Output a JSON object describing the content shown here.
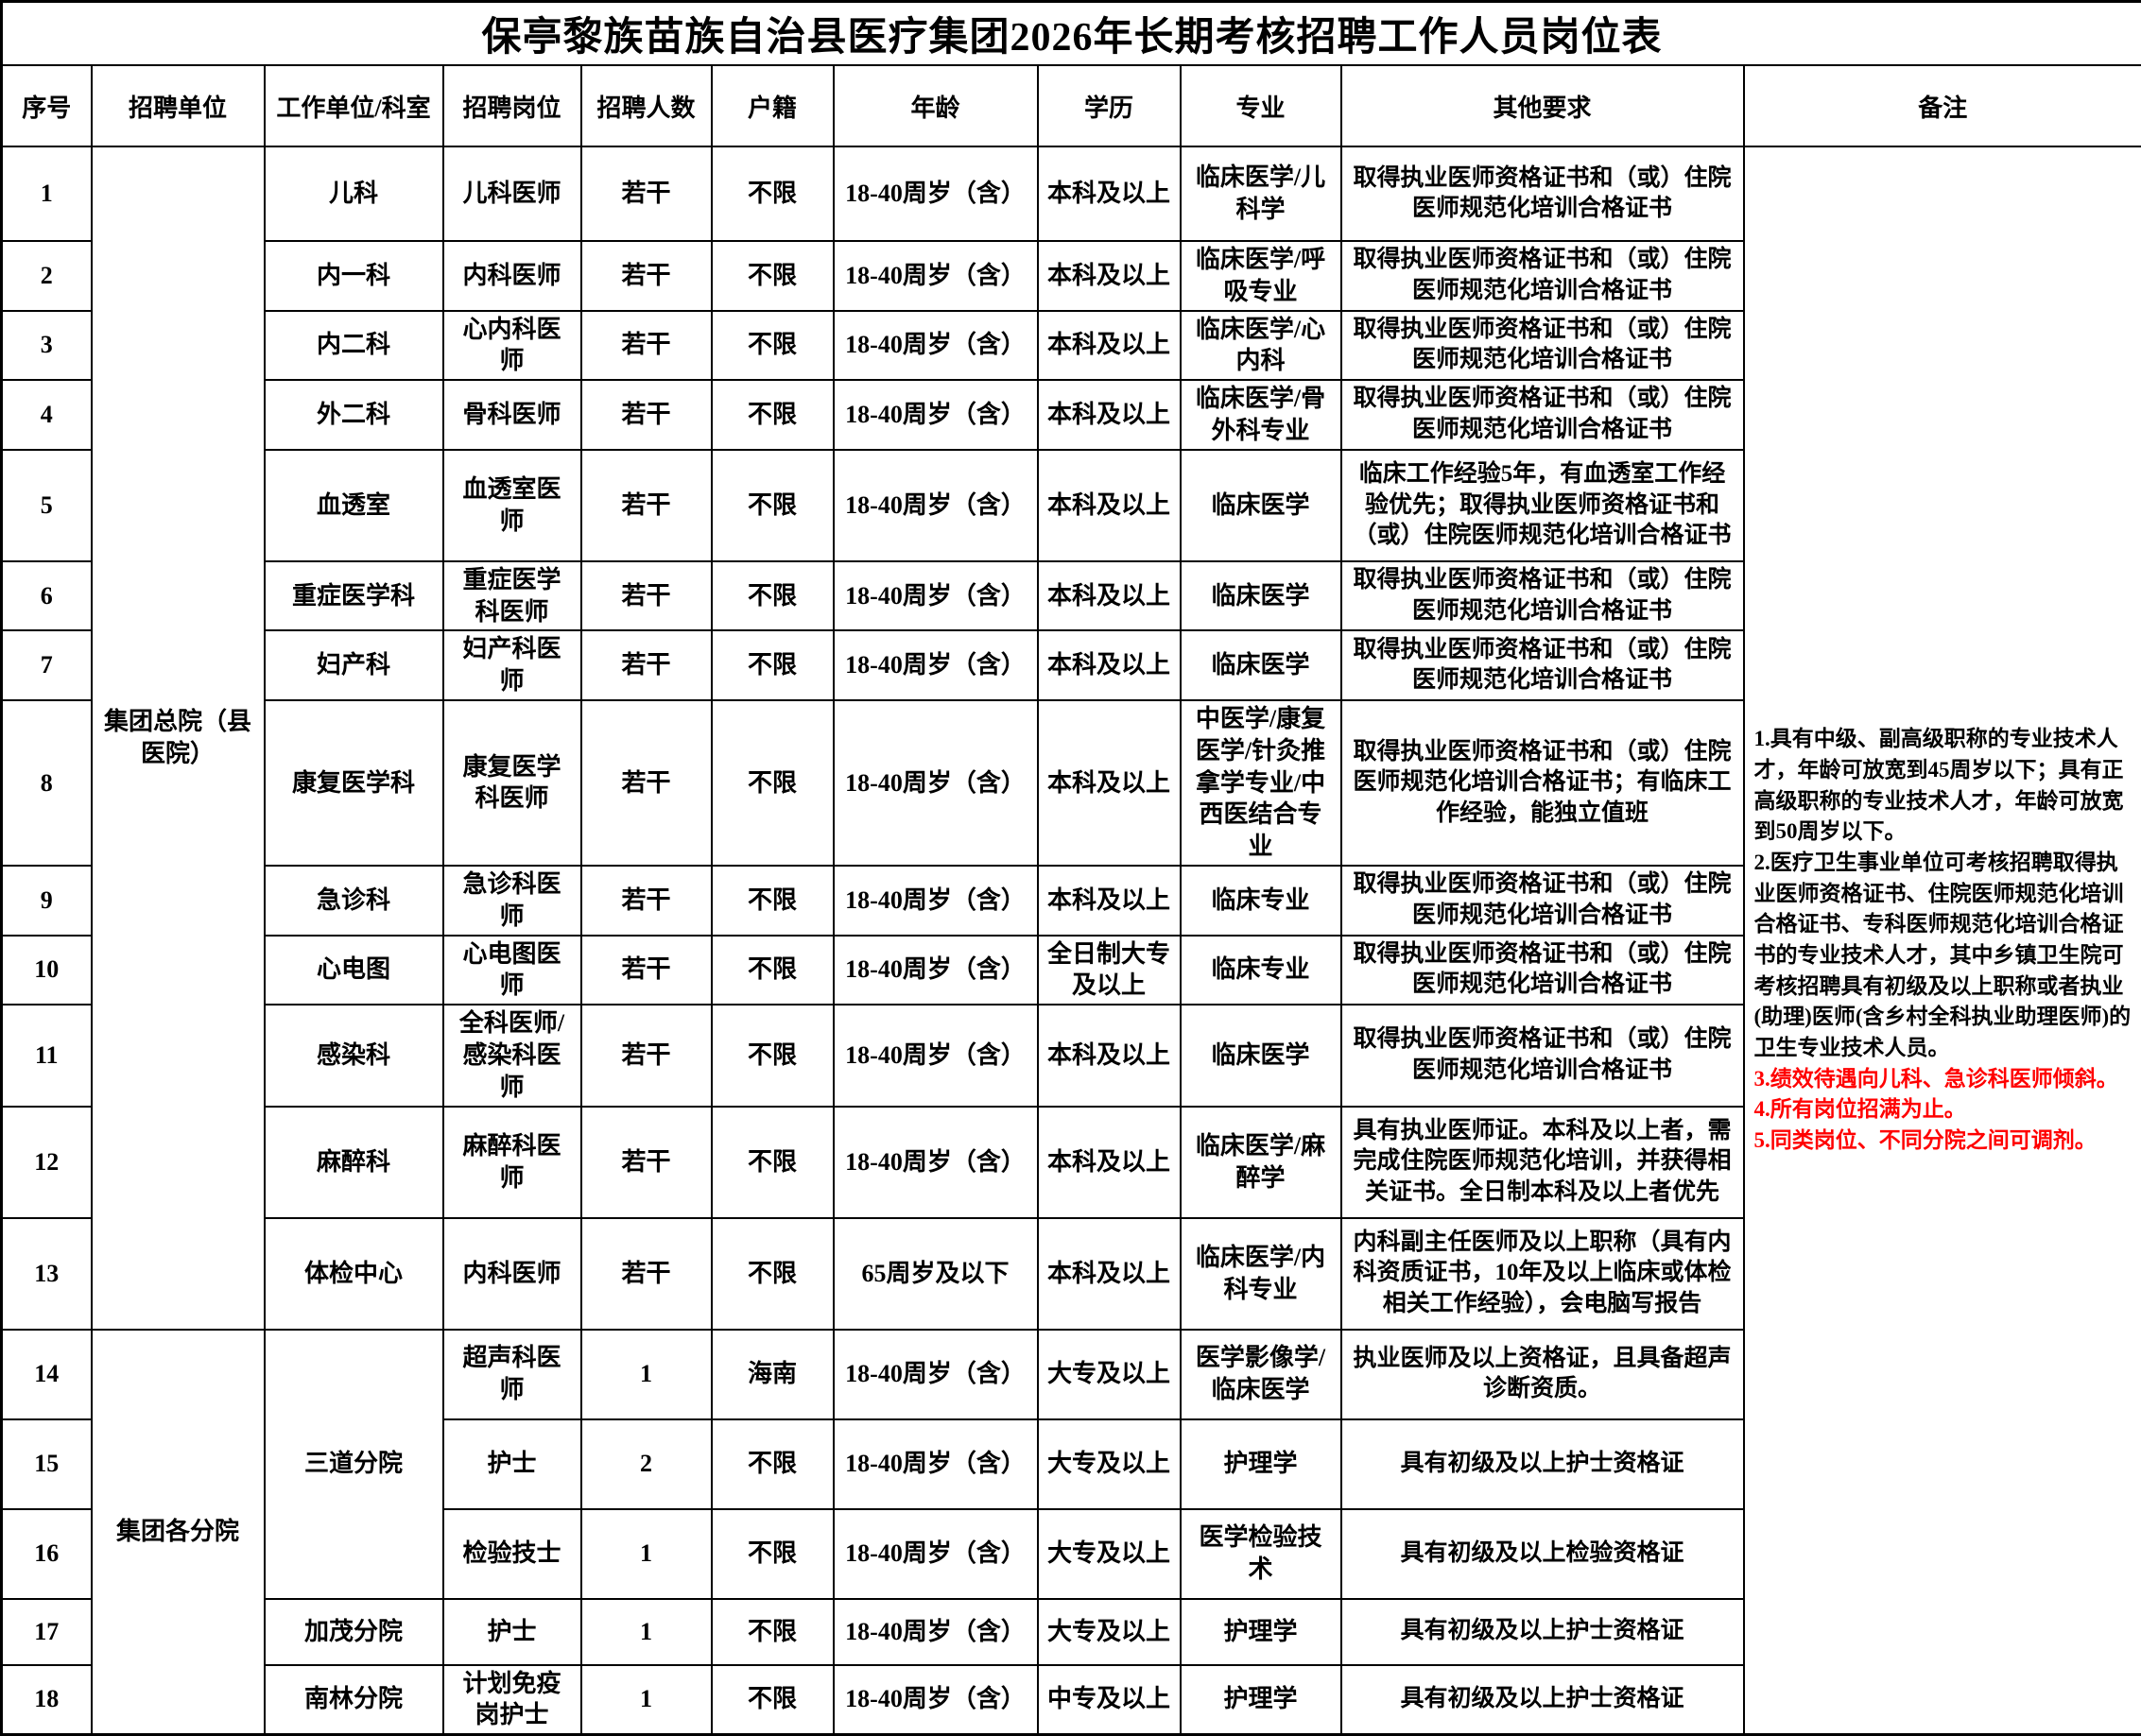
{
  "title": "保亭黎族苗族自治县医疗集团2026年长期考核招聘工作人员岗位表",
  "columns": [
    "序号",
    "招聘单位",
    "工作单位/科室",
    "招聘岗位",
    "招聘人数",
    "户籍",
    "年龄",
    "学历",
    "专业",
    "其他要求",
    "备注"
  ],
  "colors": {
    "text": "#000000",
    "border": "#000000",
    "background": "#ffffff",
    "remark_red": "#ff0000"
  },
  "rows": [
    {
      "cells": [
        {
          "name": "index",
          "text": "1"
        },
        {
          "name": "recruit-unit",
          "text": "集团总院（县医院）",
          "rowspan": 13
        },
        {
          "name": "department",
          "text": "儿科"
        },
        {
          "name": "position",
          "text": "儿科医师"
        },
        {
          "name": "headcount",
          "text": "若干"
        },
        {
          "name": "hukou",
          "text": "不限"
        },
        {
          "name": "age",
          "text": "18-40周岁（含）"
        },
        {
          "name": "education",
          "text": "本科及以上"
        },
        {
          "name": "major",
          "text": "临床医学/儿科学"
        },
        {
          "name": "requirements",
          "text": "取得执业医师资格证书和（或）住院医师规范化培训合格证书"
        },
        {
          "name": "remarks",
          "rowspan": 18,
          "items": [
            {
              "color": "black",
              "text": "1.具有中级、副高级职称的专业技术人才，年龄可放宽到45周岁以下；具有正高级职称的专业技术人才，年龄可放宽到50周岁以下。"
            },
            {
              "color": "black",
              "text": "2.医疗卫生事业单位可考核招聘取得执业医师资格证书、住院医师规范化培训合格证书、专科医师规范化培训合格证书的专业技术人才，其中乡镇卫生院可考核招聘具有初级及以上职称或者执业(助理)医师(含乡村全科执业助理医师)的卫生专业技术人员。"
            },
            {
              "color": "red",
              "text": "3.绩效待遇向儿科、急诊科医师倾斜。"
            },
            {
              "color": "red",
              "text": "4.所有岗位招满为止。"
            },
            {
              "color": "red",
              "text": "5.同类岗位、不同分院之间可调剂。"
            }
          ]
        }
      ]
    },
    {
      "cells": [
        {
          "name": "index",
          "text": "2"
        },
        {
          "name": "department",
          "text": "内一科"
        },
        {
          "name": "position",
          "text": "内科医师"
        },
        {
          "name": "headcount",
          "text": "若干"
        },
        {
          "name": "hukou",
          "text": "不限"
        },
        {
          "name": "age",
          "text": "18-40周岁（含）"
        },
        {
          "name": "education",
          "text": "本科及以上"
        },
        {
          "name": "major",
          "text": "临床医学/呼吸专业"
        },
        {
          "name": "requirements",
          "text": "取得执业医师资格证书和（或）住院医师规范化培训合格证书"
        }
      ]
    },
    {
      "cells": [
        {
          "name": "index",
          "text": "3"
        },
        {
          "name": "department",
          "text": "内二科"
        },
        {
          "name": "position",
          "text": "心内科医师"
        },
        {
          "name": "headcount",
          "text": "若干"
        },
        {
          "name": "hukou",
          "text": "不限"
        },
        {
          "name": "age",
          "text": "18-40周岁（含）"
        },
        {
          "name": "education",
          "text": "本科及以上"
        },
        {
          "name": "major",
          "text": "临床医学/心内科"
        },
        {
          "name": "requirements",
          "text": "取得执业医师资格证书和（或）住院医师规范化培训合格证书"
        }
      ]
    },
    {
      "cells": [
        {
          "name": "index",
          "text": "4"
        },
        {
          "name": "department",
          "text": "外二科"
        },
        {
          "name": "position",
          "text": "骨科医师"
        },
        {
          "name": "headcount",
          "text": "若干"
        },
        {
          "name": "hukou",
          "text": "不限"
        },
        {
          "name": "age",
          "text": "18-40周岁（含）"
        },
        {
          "name": "education",
          "text": "本科及以上"
        },
        {
          "name": "major",
          "text": "临床医学/骨外科专业"
        },
        {
          "name": "requirements",
          "text": "取得执业医师资格证书和（或）住院医师规范化培训合格证书"
        }
      ]
    },
    {
      "cells": [
        {
          "name": "index",
          "text": "5"
        },
        {
          "name": "department",
          "text": "血透室"
        },
        {
          "name": "position",
          "text": "血透室医师"
        },
        {
          "name": "headcount",
          "text": "若干"
        },
        {
          "name": "hukou",
          "text": "不限"
        },
        {
          "name": "age",
          "text": "18-40周岁（含）"
        },
        {
          "name": "education",
          "text": "本科及以上"
        },
        {
          "name": "major",
          "text": "临床医学"
        },
        {
          "name": "requirements",
          "text": "临床工作经验5年，有血透室工作经验优先；取得执业医师资格证书和（或）住院医师规范化培训合格证书"
        }
      ]
    },
    {
      "cells": [
        {
          "name": "index",
          "text": "6"
        },
        {
          "name": "department",
          "text": "重症医学科"
        },
        {
          "name": "position",
          "text": "重症医学科医师"
        },
        {
          "name": "headcount",
          "text": "若干"
        },
        {
          "name": "hukou",
          "text": "不限"
        },
        {
          "name": "age",
          "text": "18-40周岁（含）"
        },
        {
          "name": "education",
          "text": "本科及以上"
        },
        {
          "name": "major",
          "text": "临床医学"
        },
        {
          "name": "requirements",
          "text": "取得执业医师资格证书和（或）住院医师规范化培训合格证书"
        }
      ]
    },
    {
      "cells": [
        {
          "name": "index",
          "text": "7"
        },
        {
          "name": "department",
          "text": "妇产科"
        },
        {
          "name": "position",
          "text": "妇产科医师"
        },
        {
          "name": "headcount",
          "text": "若干"
        },
        {
          "name": "hukou",
          "text": "不限"
        },
        {
          "name": "age",
          "text": "18-40周岁（含）"
        },
        {
          "name": "education",
          "text": "本科及以上"
        },
        {
          "name": "major",
          "text": "临床医学"
        },
        {
          "name": "requirements",
          "text": "取得执业医师资格证书和（或）住院医师规范化培训合格证书"
        }
      ]
    },
    {
      "cells": [
        {
          "name": "index",
          "text": "8"
        },
        {
          "name": "department",
          "text": "康复医学科"
        },
        {
          "name": "position",
          "text": "康复医学科医师"
        },
        {
          "name": "headcount",
          "text": "若干"
        },
        {
          "name": "hukou",
          "text": "不限"
        },
        {
          "name": "age",
          "text": "18-40周岁（含）"
        },
        {
          "name": "education",
          "text": "本科及以上"
        },
        {
          "name": "major",
          "text": "中医学/康复医学/针灸推拿学专业/中西医结合专业"
        },
        {
          "name": "requirements",
          "text": "取得执业医师资格证书和（或）住院医师规范化培训合格证书；有临床工作经验，能独立值班"
        }
      ]
    },
    {
      "cells": [
        {
          "name": "index",
          "text": "9"
        },
        {
          "name": "department",
          "text": "急诊科"
        },
        {
          "name": "position",
          "text": "急诊科医师"
        },
        {
          "name": "headcount",
          "text": "若干"
        },
        {
          "name": "hukou",
          "text": "不限"
        },
        {
          "name": "age",
          "text": "18-40周岁（含）"
        },
        {
          "name": "education",
          "text": "本科及以上"
        },
        {
          "name": "major",
          "text": "临床专业"
        },
        {
          "name": "requirements",
          "text": "取得执业医师资格证书和（或）住院医师规范化培训合格证书"
        }
      ]
    },
    {
      "cells": [
        {
          "name": "index",
          "text": "10"
        },
        {
          "name": "department",
          "text": "心电图"
        },
        {
          "name": "position",
          "text": "心电图医师"
        },
        {
          "name": "headcount",
          "text": "若干"
        },
        {
          "name": "hukou",
          "text": "不限"
        },
        {
          "name": "age",
          "text": "18-40周岁（含）"
        },
        {
          "name": "education",
          "text": "全日制大专及以上"
        },
        {
          "name": "major",
          "text": "临床专业"
        },
        {
          "name": "requirements",
          "text": "取得执业医师资格证书和（或）住院医师规范化培训合格证书"
        }
      ]
    },
    {
      "cells": [
        {
          "name": "index",
          "text": "11"
        },
        {
          "name": "department",
          "text": "感染科"
        },
        {
          "name": "position",
          "text": "全科医师/感染科医师"
        },
        {
          "name": "headcount",
          "text": "若干"
        },
        {
          "name": "hukou",
          "text": "不限"
        },
        {
          "name": "age",
          "text": "18-40周岁（含）"
        },
        {
          "name": "education",
          "text": "本科及以上"
        },
        {
          "name": "major",
          "text": "临床医学"
        },
        {
          "name": "requirements",
          "text": "取得执业医师资格证书和（或）住院医师规范化培训合格证书"
        }
      ]
    },
    {
      "cells": [
        {
          "name": "index",
          "text": "12"
        },
        {
          "name": "department",
          "text": "麻醉科"
        },
        {
          "name": "position",
          "text": "麻醉科医师"
        },
        {
          "name": "headcount",
          "text": "若干"
        },
        {
          "name": "hukou",
          "text": "不限"
        },
        {
          "name": "age",
          "text": "18-40周岁（含）"
        },
        {
          "name": "education",
          "text": "本科及以上"
        },
        {
          "name": "major",
          "text": "临床医学/麻醉学"
        },
        {
          "name": "requirements",
          "text": "具有执业医师证。本科及以上者，需完成住院医师规范化培训，并获得相关证书。全日制本科及以上者优先"
        }
      ]
    },
    {
      "cells": [
        {
          "name": "index",
          "text": "13"
        },
        {
          "name": "department",
          "text": "体检中心"
        },
        {
          "name": "position",
          "text": "内科医师"
        },
        {
          "name": "headcount",
          "text": "若干"
        },
        {
          "name": "hukou",
          "text": "不限"
        },
        {
          "name": "age",
          "text": "65周岁及以下"
        },
        {
          "name": "education",
          "text": "本科及以上"
        },
        {
          "name": "major",
          "text": "临床医学/内科专业"
        },
        {
          "name": "requirements",
          "text": "内科副主任医师及以上职称（具有内科资质证书，10年及以上临床或体检相关工作经验），会电脑写报告"
        }
      ]
    },
    {
      "cells": [
        {
          "name": "index",
          "text": "14"
        },
        {
          "name": "recruit-unit",
          "text": "集团各分院",
          "rowspan": 5
        },
        {
          "name": "department",
          "text": "三道分院",
          "rowspan": 3
        },
        {
          "name": "position",
          "text": "超声科医师"
        },
        {
          "name": "headcount",
          "text": "1"
        },
        {
          "name": "hukou",
          "text": "海南"
        },
        {
          "name": "age",
          "text": "18-40周岁（含）"
        },
        {
          "name": "education",
          "text": "大专及以上"
        },
        {
          "name": "major",
          "text": "医学影像学/临床医学"
        },
        {
          "name": "requirements",
          "text": "执业医师及以上资格证，且具备超声诊断资质。"
        }
      ]
    },
    {
      "cells": [
        {
          "name": "index",
          "text": "15"
        },
        {
          "name": "position",
          "text": "护士"
        },
        {
          "name": "headcount",
          "text": "2"
        },
        {
          "name": "hukou",
          "text": "不限"
        },
        {
          "name": "age",
          "text": "18-40周岁（含）"
        },
        {
          "name": "education",
          "text": "大专及以上"
        },
        {
          "name": "major",
          "text": "护理学"
        },
        {
          "name": "requirements",
          "text": "具有初级及以上护士资格证"
        }
      ]
    },
    {
      "cells": [
        {
          "name": "index",
          "text": "16"
        },
        {
          "name": "position",
          "text": "检验技士"
        },
        {
          "name": "headcount",
          "text": "1"
        },
        {
          "name": "hukou",
          "text": "不限"
        },
        {
          "name": "age",
          "text": "18-40周岁（含）"
        },
        {
          "name": "education",
          "text": "大专及以上"
        },
        {
          "name": "major",
          "text": "医学检验技术"
        },
        {
          "name": "requirements",
          "text": "具有初级及以上检验资格证"
        }
      ]
    },
    {
      "cells": [
        {
          "name": "index",
          "text": "17"
        },
        {
          "name": "department",
          "text": "加茂分院"
        },
        {
          "name": "position",
          "text": "护士"
        },
        {
          "name": "headcount",
          "text": "1"
        },
        {
          "name": "hukou",
          "text": "不限"
        },
        {
          "name": "age",
          "text": "18-40周岁（含）"
        },
        {
          "name": "education",
          "text": "大专及以上"
        },
        {
          "name": "major",
          "text": "护理学"
        },
        {
          "name": "requirements",
          "text": "具有初级及以上护士资格证"
        }
      ]
    },
    {
      "cells": [
        {
          "name": "index",
          "text": "18"
        },
        {
          "name": "department",
          "text": "南林分院"
        },
        {
          "name": "position",
          "text": "计划免疫岗护士"
        },
        {
          "name": "headcount",
          "text": "1"
        },
        {
          "name": "hukou",
          "text": "不限"
        },
        {
          "name": "age",
          "text": "18-40周岁（含）"
        },
        {
          "name": "education",
          "text": "中专及以上"
        },
        {
          "name": "major",
          "text": "护理学"
        },
        {
          "name": "requirements",
          "text": "具有初级及以上护士资格证"
        }
      ]
    }
  ]
}
